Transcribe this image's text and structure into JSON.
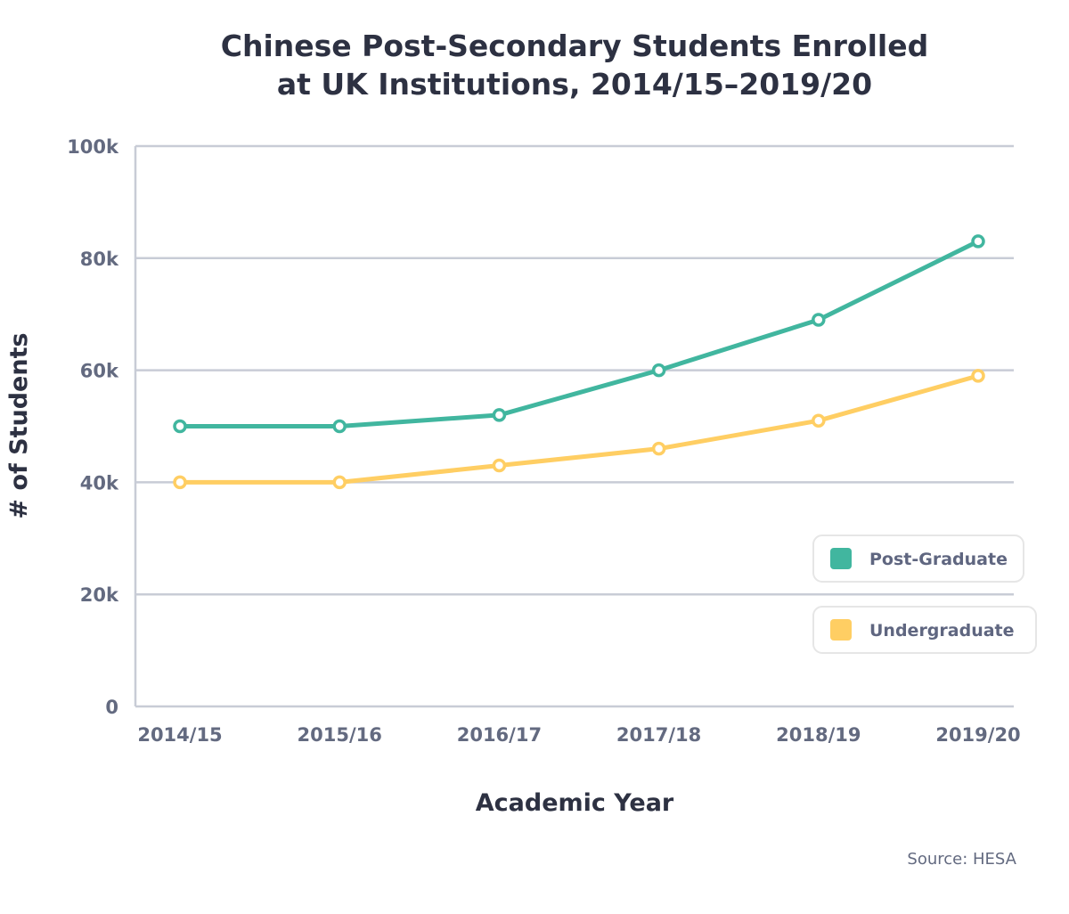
{
  "chart_data": {
    "type": "line",
    "title_lines": [
      "Chinese Post-Secondary Students Enrolled",
      "at UK Institutions, 2014/15–2019/20"
    ],
    "xlabel": "Academic Year",
    "ylabel": "# of Students",
    "categories": [
      "2014/15",
      "2015/16",
      "2016/17",
      "2017/18",
      "2018/19",
      "2019/20"
    ],
    "yticks": [
      0,
      20000,
      40000,
      60000,
      80000,
      100000
    ],
    "ytick_labels": [
      "0",
      "20k",
      "40k",
      "60k",
      "80k",
      "100k"
    ],
    "ylim": [
      0,
      100000
    ],
    "grid": true,
    "legend_placement": "bottom-right",
    "series": [
      {
        "name": "Post-Graduate",
        "color": "#41b69f",
        "values": [
          50000,
          50000,
          52000,
          60000,
          69000,
          83000
        ]
      },
      {
        "name": "Undergraduate",
        "color": "#ffce63",
        "values": [
          40000,
          40000,
          43000,
          46000,
          51000,
          59000
        ]
      }
    ],
    "source": "Source: HESA"
  }
}
